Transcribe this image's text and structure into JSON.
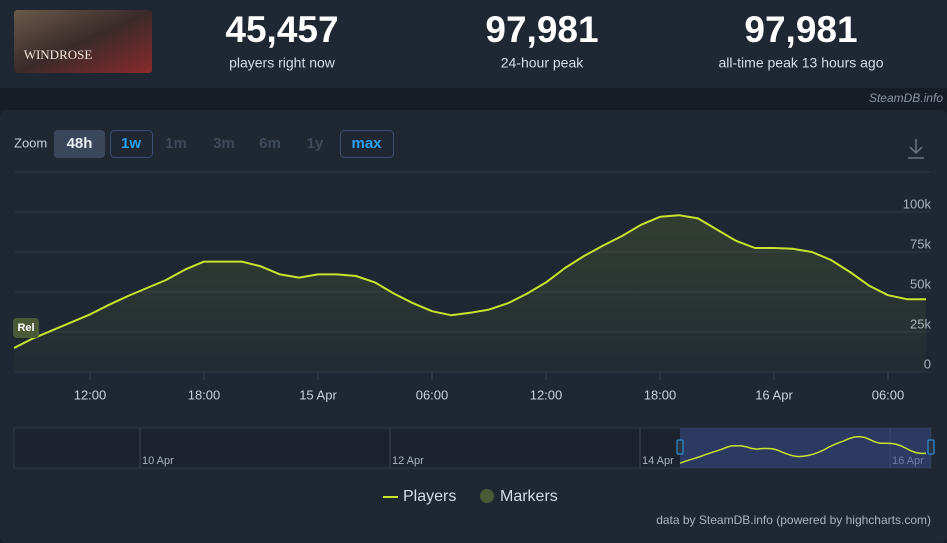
{
  "header": {
    "game": "WINDROSE",
    "stats": [
      {
        "value": "45,457",
        "label": "players right now"
      },
      {
        "value": "97,981",
        "label": "24-hour peak"
      },
      {
        "value": "97,981",
        "label": "all-time peak 13 hours ago"
      }
    ],
    "source": "SteamDB.info"
  },
  "zoom": {
    "label": "Zoom",
    "buttons": [
      "48h",
      "1w",
      "1m",
      "3m",
      "6m",
      "1y",
      "max"
    ]
  },
  "chart_data": {
    "type": "line",
    "categories": [
      null,
      null,
      null,
      null,
      "12:00",
      null,
      null,
      null,
      null,
      null,
      "18:00",
      null,
      null,
      null,
      null,
      null,
      "15 Apr",
      null,
      null,
      null,
      null,
      null,
      "06:00",
      null,
      null,
      null,
      null,
      null,
      "12:00",
      null,
      null,
      null,
      null,
      null,
      "18:00",
      null,
      null,
      null,
      null,
      null,
      "16 Apr",
      null,
      null,
      null,
      null,
      null,
      "06:00",
      null,
      null
    ],
    "series": [
      {
        "name": "Players",
        "color": "#c6e52c",
        "values": [
          15000,
          21000,
          26000,
          31000,
          36000,
          42000,
          47500,
          52500,
          57500,
          64000,
          69000,
          69000,
          69000,
          66000,
          61000,
          59000,
          61000,
          61000,
          60000,
          56000,
          49000,
          43000,
          38000,
          35500,
          37000,
          39000,
          43000,
          49000,
          56000,
          65000,
          72500,
          79000,
          85000,
          92000,
          97000,
          98000,
          96000,
          89000,
          82000,
          77500,
          77500,
          77000,
          75000,
          70000,
          62500,
          54000,
          48000,
          45500,
          45500
        ]
      }
    ],
    "ylim": [
      0,
      125000
    ],
    "yticks": [
      {
        "value": 0,
        "label": "0"
      },
      {
        "value": 25000,
        "label": "25k"
      },
      {
        "value": 50000,
        "label": "50k"
      },
      {
        "value": 75000,
        "label": "75k"
      },
      {
        "value": 100000,
        "label": "100k"
      }
    ],
    "grid": true,
    "marker_label": "Rel",
    "markers": {
      "name": "Markers",
      "color": "#4b5a36"
    },
    "navigator_labels": [
      "10 Apr",
      "12 Apr",
      "14 Apr",
      "16 Apr"
    ],
    "credit": "data by SteamDB.info (powered by highcharts.com)"
  }
}
